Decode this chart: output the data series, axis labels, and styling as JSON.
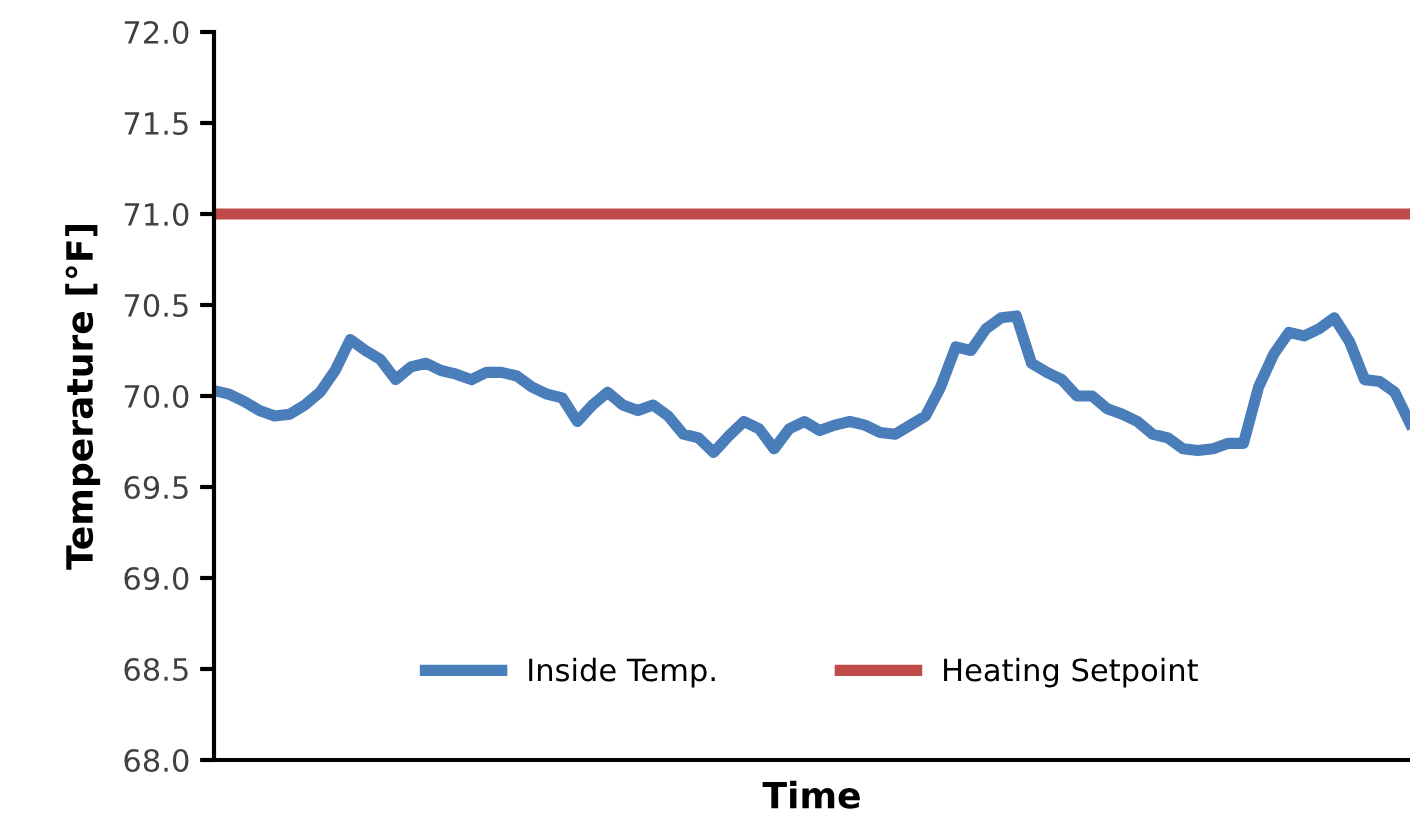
{
  "chart_data": {
    "type": "line",
    "xlabel": "Time",
    "ylabel": "Temperature [°F]",
    "ylim": [
      68.0,
      72.0
    ],
    "yticks": [
      {
        "value": 68,
        "label": "68.0"
      },
      {
        "value": 68.5,
        "label": "68.5"
      },
      {
        "value": 69,
        "label": "69.0"
      },
      {
        "value": 69.5,
        "label": "69.5"
      },
      {
        "value": 70,
        "label": "70.0"
      },
      {
        "value": 70.5,
        "label": "70.5"
      },
      {
        "value": 71,
        "label": "71.0"
      },
      {
        "value": 71.5,
        "label": "71.5"
      },
      {
        "value": 72,
        "label": "72.0"
      }
    ],
    "grid": false,
    "legend": "bottom",
    "marker": "none",
    "line_style": "solid",
    "categories": [
      null,
      null,
      null,
      null,
      null,
      null,
      null,
      null,
      null,
      null,
      null,
      null,
      null,
      null,
      null,
      null,
      null,
      null,
      null,
      null,
      null,
      null,
      null,
      null,
      null,
      null,
      null,
      null,
      null,
      null,
      null,
      null,
      null,
      null,
      null,
      null,
      null,
      null,
      null,
      null,
      null,
      null,
      null,
      null,
      null,
      null,
      null,
      null,
      null,
      null,
      null,
      null,
      null,
      null,
      null,
      null,
      null,
      null,
      null,
      null,
      null,
      null,
      null,
      null,
      null,
      null,
      null,
      null,
      null,
      null,
      null,
      null,
      null,
      null,
      null,
      null,
      null,
      null,
      null,
      null
    ],
    "series": [
      {
        "name": "Inside Temp.",
        "color": "#4a7ebb",
        "values": [
          70.03,
          70.01,
          69.97,
          69.92,
          69.89,
          69.9,
          69.95,
          70.02,
          70.14,
          70.31,
          70.25,
          70.2,
          70.09,
          70.16,
          70.18,
          70.14,
          70.12,
          70.09,
          70.13,
          70.13,
          70.11,
          70.05,
          70.01,
          69.99,
          69.86,
          69.95,
          70.02,
          69.95,
          69.92,
          69.95,
          69.89,
          69.79,
          69.77,
          69.69,
          69.78,
          69.86,
          69.82,
          69.71,
          69.82,
          69.86,
          69.81,
          69.84,
          69.86,
          69.84,
          69.8,
          69.79,
          69.84,
          69.89,
          70.05,
          70.27,
          70.25,
          70.37,
          70.43,
          70.44,
          70.18,
          70.13,
          70.09,
          70.0,
          70.0,
          69.93,
          69.9,
          69.86,
          69.79,
          69.77,
          69.71,
          69.7,
          69.71,
          69.74,
          69.74,
          70.05,
          70.23,
          70.35,
          70.33,
          70.37,
          70.43,
          70.3,
          70.09,
          70.08,
          70.02,
          69.85
        ]
      },
      {
        "name": "Heating Setpoint",
        "color": "#be4b48",
        "values": [
          71.0,
          71.0,
          71.0,
          71.0,
          71.0,
          71.0,
          71.0,
          71.0,
          71.0,
          71.0,
          71.0,
          71.0,
          71.0,
          71.0,
          71.0,
          71.0,
          71.0,
          71.0,
          71.0,
          71.0,
          71.0,
          71.0,
          71.0,
          71.0,
          71.0,
          71.0,
          71.0,
          71.0,
          71.0,
          71.0,
          71.0,
          71.0,
          71.0,
          71.0,
          71.0,
          71.0,
          71.0,
          71.0,
          71.0,
          71.0,
          71.0,
          71.0,
          71.0,
          71.0,
          71.0,
          71.0,
          71.0,
          71.0,
          71.0,
          71.0,
          71.0,
          71.0,
          71.0,
          71.0,
          71.0,
          71.0,
          71.0,
          71.0,
          71.0,
          71.0,
          71.0,
          71.0,
          71.0,
          71.0,
          71.0,
          71.0,
          71.0,
          71.0,
          71.0,
          71.0,
          71.0,
          71.0,
          71.0,
          71.0,
          71.0,
          71.0,
          71.0,
          71.0,
          71.0,
          71.0
        ]
      }
    ]
  }
}
